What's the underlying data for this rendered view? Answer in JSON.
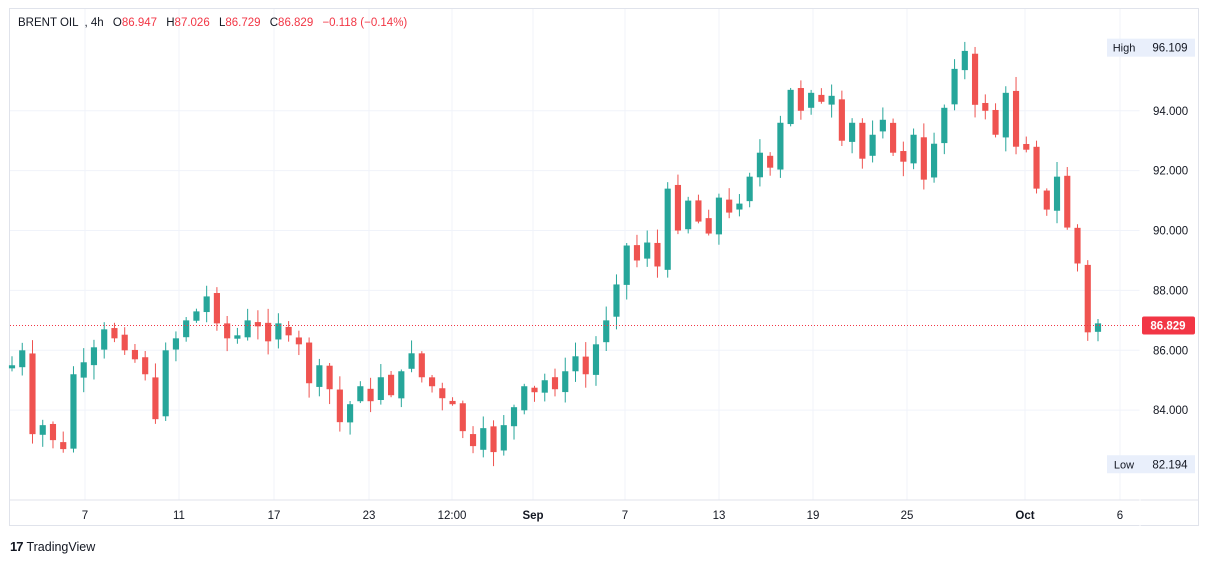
{
  "header": {
    "symbol": "BRENT OIL",
    "timeframe": "4h",
    "open_label": "O",
    "open": "86.947",
    "high_label": "H",
    "high": "87.026",
    "low_label": "L",
    "low": "86.729",
    "close_label": "C",
    "close": "86.829",
    "change": "−0.118 (−0.14%)"
  },
  "brand": {
    "name": "TradingView",
    "logo": "tradingview-logo-icon"
  },
  "colors": {
    "up": "#26a69a",
    "down": "#ef5350",
    "last_price": "#f23645",
    "grid": "#f0f3fa"
  },
  "chart_data": {
    "type": "candlestick",
    "symbol": "BRENT OIL",
    "interval": "4h",
    "y_axis": {
      "ticks": [
        "84.000",
        "86.000",
        "88.000",
        "90.000",
        "92.000",
        "94.000"
      ],
      "ylim": [
        81.0,
        97.4
      ]
    },
    "x_axis": {
      "ticks": [
        "7",
        "11",
        "17",
        "23",
        "12:00",
        "Sep",
        "7",
        "13",
        "19",
        "25",
        "Oct",
        "6"
      ]
    },
    "high_marker": {
      "label": "High",
      "value": "96.109"
    },
    "low_marker": {
      "label": "Low",
      "value": "82.194"
    },
    "last_price": "86.829",
    "closes": [
      85.5,
      86.0,
      83.2,
      83.5,
      83.0,
      82.7,
      85.2,
      85.6,
      86.1,
      86.7,
      86.4,
      86.0,
      85.7,
      85.2,
      83.7,
      86.0,
      86.4,
      87.0,
      87.3,
      87.8,
      86.9,
      86.4,
      86.5,
      87.0,
      86.8,
      86.3,
      86.9,
      86.5,
      86.2,
      84.9,
      85.5,
      84.7,
      83.6,
      84.2,
      84.8,
      84.3,
      85.1,
      84.5,
      85.3,
      85.9,
      85.1,
      84.8,
      84.4,
      84.2,
      83.3,
      82.8,
      83.4,
      82.6,
      83.5,
      84.1,
      84.8,
      84.6,
      85.0,
      84.7,
      85.3,
      85.8,
      85.2,
      86.2,
      87.0,
      88.2,
      89.5,
      89.0,
      89.6,
      88.8,
      91.4,
      90.0,
      91.0,
      90.3,
      89.9,
      91.1,
      90.6,
      90.9,
      91.8,
      92.6,
      92.1,
      93.6,
      94.7,
      94.0,
      94.6,
      94.3,
      94.5,
      93.0,
      93.6,
      92.4,
      93.2,
      93.7,
      92.6,
      92.3,
      93.2,
      91.7,
      92.9,
      94.1,
      95.4,
      96.0,
      94.2,
      94.0,
      93.2,
      94.6,
      92.8,
      92.7,
      91.4,
      90.7,
      91.8,
      90.1,
      88.9,
      86.6,
      86.9
    ]
  }
}
